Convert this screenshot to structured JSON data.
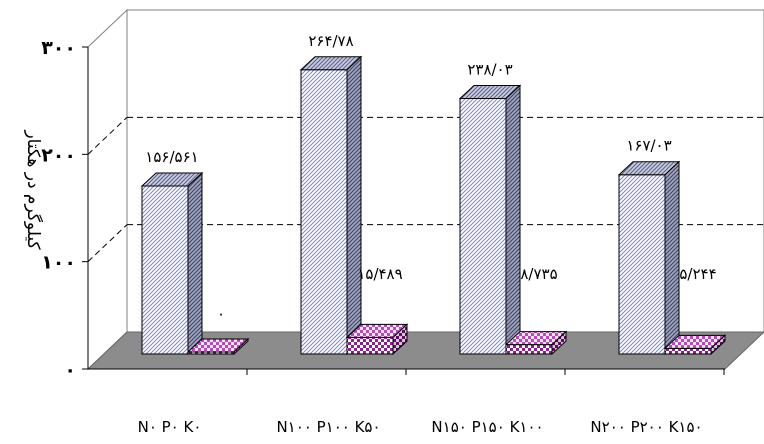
{
  "chart_data": {
    "type": "bar",
    "ylabel": "کیلوگرم در هکتار",
    "ylim": [
      0,
      300
    ],
    "yticks": [
      0,
      100,
      200,
      300
    ],
    "ytick_labels": [
      "۰",
      "۱۰۰",
      "۲۰۰",
      "۳۰۰"
    ],
    "grid": "horizontal dashed lines at 100 and 200",
    "categories": [
      "N۰ P۰ K۰",
      "N۱۰۰ P۱۰۰ K۵۰",
      "N۱۵۰ P۱۵۰ K۱۰۰",
      "N۲۰۰ P۲۰۰ K۱۵۰"
    ],
    "series": [
      {
        "values": [
          156.561,
          264.78,
          238.03,
          167.03
        ],
        "labels": [
          "۱۵۶/۵۶۱",
          "۲۶۴/۷۸",
          "۲۳۸/۰۳",
          "۱۶۷/۰۳"
        ],
        "color": "#c9cfee"
      },
      {
        "values": [
          0,
          15.489,
          8.735,
          5.244
        ],
        "labels": [
          "۰",
          "۱۵/۴۸۹",
          "۸/۷۳۵",
          "۵/۲۴۴"
        ],
        "color": "#9b1e9b"
      }
    ],
    "floor_color": "#8c8c8c"
  }
}
